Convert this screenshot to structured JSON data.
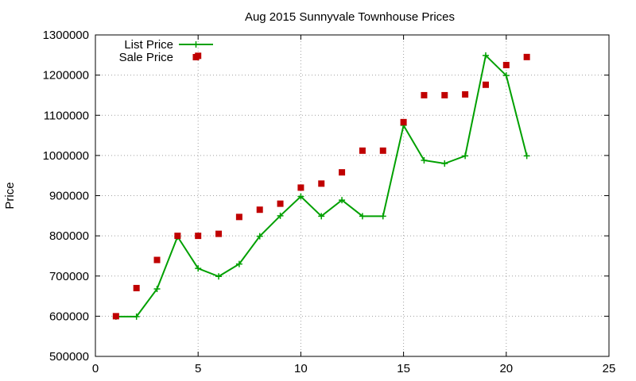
{
  "chart_data": {
    "type": "scatter",
    "title": "Aug 2015 Sunnyvale Townhouse Prices",
    "xlabel": "",
    "ylabel": "Price",
    "xlim": [
      0,
      25
    ],
    "ylim": [
      500000,
      1300000
    ],
    "xticks": [
      0,
      5,
      10,
      15,
      20,
      25
    ],
    "yticks": [
      500000,
      600000,
      700000,
      800000,
      900000,
      1000000,
      1100000,
      1200000,
      1300000
    ],
    "grid": true,
    "legend": "top-left",
    "series": [
      {
        "name": "List Price",
        "kind": "line",
        "color": "#00a000",
        "x": [
          1,
          2,
          3,
          4,
          5,
          6,
          7,
          8,
          9,
          10,
          11,
          12,
          13,
          14,
          15,
          16,
          17,
          18,
          19,
          20,
          21
        ],
        "y": [
          599000,
          599000,
          668000,
          798000,
          719000,
          699000,
          730000,
          799000,
          850000,
          898000,
          849000,
          889000,
          849000,
          849000,
          1075000,
          988000,
          980000,
          999000,
          1249000,
          1199000,
          999000
        ]
      },
      {
        "name": "Sale Price",
        "kind": "points",
        "color": "#c00000",
        "x": [
          1,
          2,
          3,
          4,
          5,
          5,
          6,
          7,
          8,
          9,
          10,
          11,
          12,
          13,
          14,
          15,
          16,
          17,
          18,
          19,
          20,
          21
        ],
        "y": [
          600000,
          670000,
          740000,
          800000,
          800000,
          1248000,
          805000,
          847000,
          865000,
          880000,
          920000,
          930000,
          958000,
          1012000,
          1012000,
          1083000,
          1150000,
          1150000,
          1152000,
          1176000,
          1225000,
          1245000
        ]
      }
    ]
  }
}
